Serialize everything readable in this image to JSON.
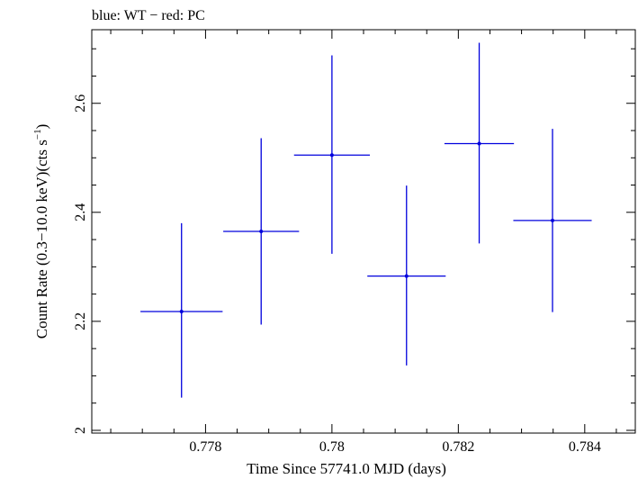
{
  "chart_data": {
    "type": "scatter",
    "title": "blue: WT − red: PC",
    "xlabel": "Time Since 57741.0 MJD (days)",
    "ylabel_main": "Count Rate (0.3−10.0 keV)(cts s",
    "ylabel_sup": "−1",
    "ylabel_close": ")",
    "xlim": [
      0.7762,
      0.7848
    ],
    "ylim": [
      1.995,
      2.735
    ],
    "x_ticks": [
      0.778,
      0.78,
      0.782,
      0.784
    ],
    "x_tick_labels": [
      "0.778",
      "0.78",
      "0.782",
      "0.784"
    ],
    "y_ticks": [
      2.0,
      2.2,
      2.4,
      2.6
    ],
    "y_tick_labels": [
      "2",
      "2.2",
      "2.4",
      "2.6"
    ],
    "grid": false,
    "series": [
      {
        "color": "#0000dd",
        "points": [
          {
            "x": 0.77762,
            "xerr_lo": 0.00065,
            "xerr_hi": 0.00065,
            "y": 2.218,
            "yerr_lo": 0.158,
            "yerr_hi": 0.162
          },
          {
            "x": 0.77888,
            "xerr_lo": 0.0006,
            "xerr_hi": 0.0006,
            "y": 2.365,
            "yerr_lo": 0.171,
            "yerr_hi": 0.171
          },
          {
            "x": 0.78,
            "xerr_lo": 0.0006,
            "xerr_hi": 0.0006,
            "y": 2.505,
            "yerr_lo": 0.181,
            "yerr_hi": 0.183
          },
          {
            "x": 0.78118,
            "xerr_lo": 0.00062,
            "xerr_hi": 0.00062,
            "y": 2.283,
            "yerr_lo": 0.164,
            "yerr_hi": 0.166
          },
          {
            "x": 0.78233,
            "xerr_lo": 0.00055,
            "xerr_hi": 0.00055,
            "y": 2.526,
            "yerr_lo": 0.183,
            "yerr_hi": 0.185
          },
          {
            "x": 0.78349,
            "xerr_lo": 0.00062,
            "xerr_hi": 0.00062,
            "y": 2.385,
            "yerr_lo": 0.168,
            "yerr_hi": 0.168
          }
        ]
      }
    ]
  }
}
